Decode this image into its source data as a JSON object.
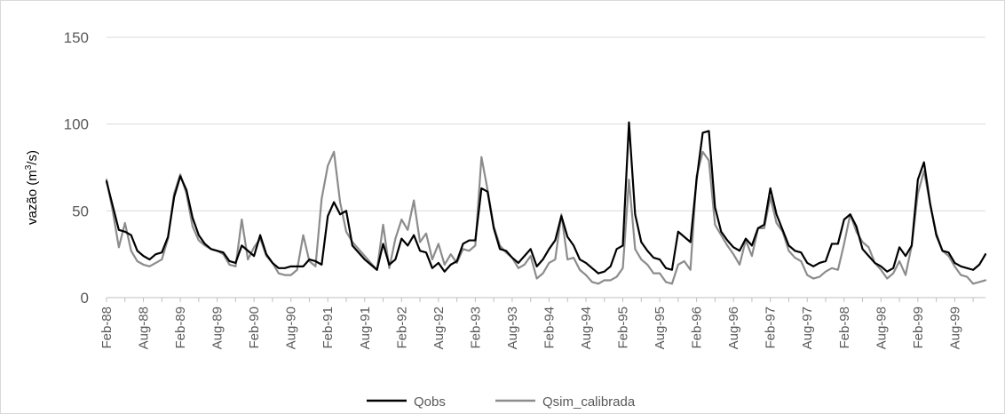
{
  "chart_data": {
    "type": "line",
    "ylabel_main": "vazão (m",
    "ylabel_sup": "3",
    "ylabel_end": "/s)",
    "ylim": [
      0,
      150
    ],
    "yticks": [
      0,
      50,
      100,
      150
    ],
    "grid": true,
    "legend_position": "bottom",
    "x_tick_labels": [
      "Feb-88",
      "Aug-88",
      "Feb-89",
      "Aug-89",
      "Feb-90",
      "Aug-90",
      "Feb-91",
      "Aug-91",
      "Feb-92",
      "Aug-92",
      "Feb-93",
      "Aug-93",
      "Feb-94",
      "Aug-94",
      "Feb-95",
      "Aug-95",
      "Feb-96",
      "Aug-96",
      "Feb-97",
      "Aug-97",
      "Feb-98",
      "Aug-98",
      "Feb-99",
      "Aug-99"
    ],
    "x_start": "Feb-88",
    "x_end": "Dec-99",
    "series": [
      {
        "name": "Qobs",
        "color": "#000000",
        "values": [
          67,
          53,
          39,
          38,
          36,
          27,
          24,
          22,
          25,
          26,
          35,
          58,
          70,
          62,
          46,
          36,
          31,
          28,
          27,
          26,
          21,
          20,
          30,
          27,
          24,
          36,
          25,
          20,
          17,
          17,
          18,
          18,
          18,
          22,
          21,
          19,
          47,
          55,
          48,
          50,
          30,
          26,
          22,
          19,
          16,
          31,
          19,
          22,
          34,
          30,
          36,
          27,
          26,
          17,
          20,
          15,
          19,
          21,
          31,
          33,
          33,
          63,
          61,
          40,
          28,
          27,
          23,
          20,
          24,
          28,
          18,
          22,
          28,
          33,
          47,
          35,
          30,
          22,
          20,
          17,
          14,
          15,
          18,
          28,
          30,
          101,
          48,
          32,
          27,
          23,
          22,
          17,
          16,
          38,
          35,
          32,
          68,
          95,
          96,
          52,
          38,
          33,
          29,
          27,
          34,
          30,
          40,
          42,
          63,
          48,
          39,
          30,
          27,
          26,
          20,
          18,
          20,
          21,
          31,
          31,
          45,
          48,
          41,
          28,
          24,
          20,
          18,
          15,
          17,
          29,
          24,
          30,
          68,
          78,
          54,
          36,
          27,
          26,
          20,
          18,
          17,
          16,
          19,
          25
        ]
      },
      {
        "name": "Qsim_calibrada",
        "color": "#8c8c8c",
        "values": [
          68,
          50,
          29,
          43,
          27,
          21,
          19,
          18,
          20,
          22,
          34,
          60,
          71,
          60,
          41,
          33,
          30,
          28,
          27,
          25,
          19,
          18,
          45,
          22,
          29,
          34,
          24,
          20,
          14,
          13,
          13,
          16,
          36,
          21,
          18,
          57,
          76,
          84,
          55,
          38,
          32,
          28,
          24,
          20,
          16,
          42,
          17,
          34,
          45,
          39,
          56,
          32,
          37,
          22,
          31,
          19,
          25,
          20,
          28,
          27,
          30,
          81,
          62,
          41,
          30,
          26,
          23,
          17,
          19,
          24,
          11,
          14,
          20,
          22,
          48,
          22,
          23,
          16,
          13,
          9,
          8,
          10,
          10,
          12,
          17,
          68,
          28,
          22,
          19,
          14,
          14,
          9,
          8,
          19,
          21,
          16,
          70,
          84,
          79,
          42,
          36,
          30,
          25,
          19,
          33,
          24,
          40,
          40,
          58,
          43,
          38,
          27,
          23,
          21,
          13,
          11,
          12,
          15,
          17,
          16,
          31,
          48,
          38,
          32,
          29,
          20,
          16,
          11,
          14,
          21,
          13,
          30,
          60,
          73,
          54,
          37,
          27,
          24,
          18,
          13,
          12,
          8,
          9,
          10
        ]
      }
    ]
  }
}
